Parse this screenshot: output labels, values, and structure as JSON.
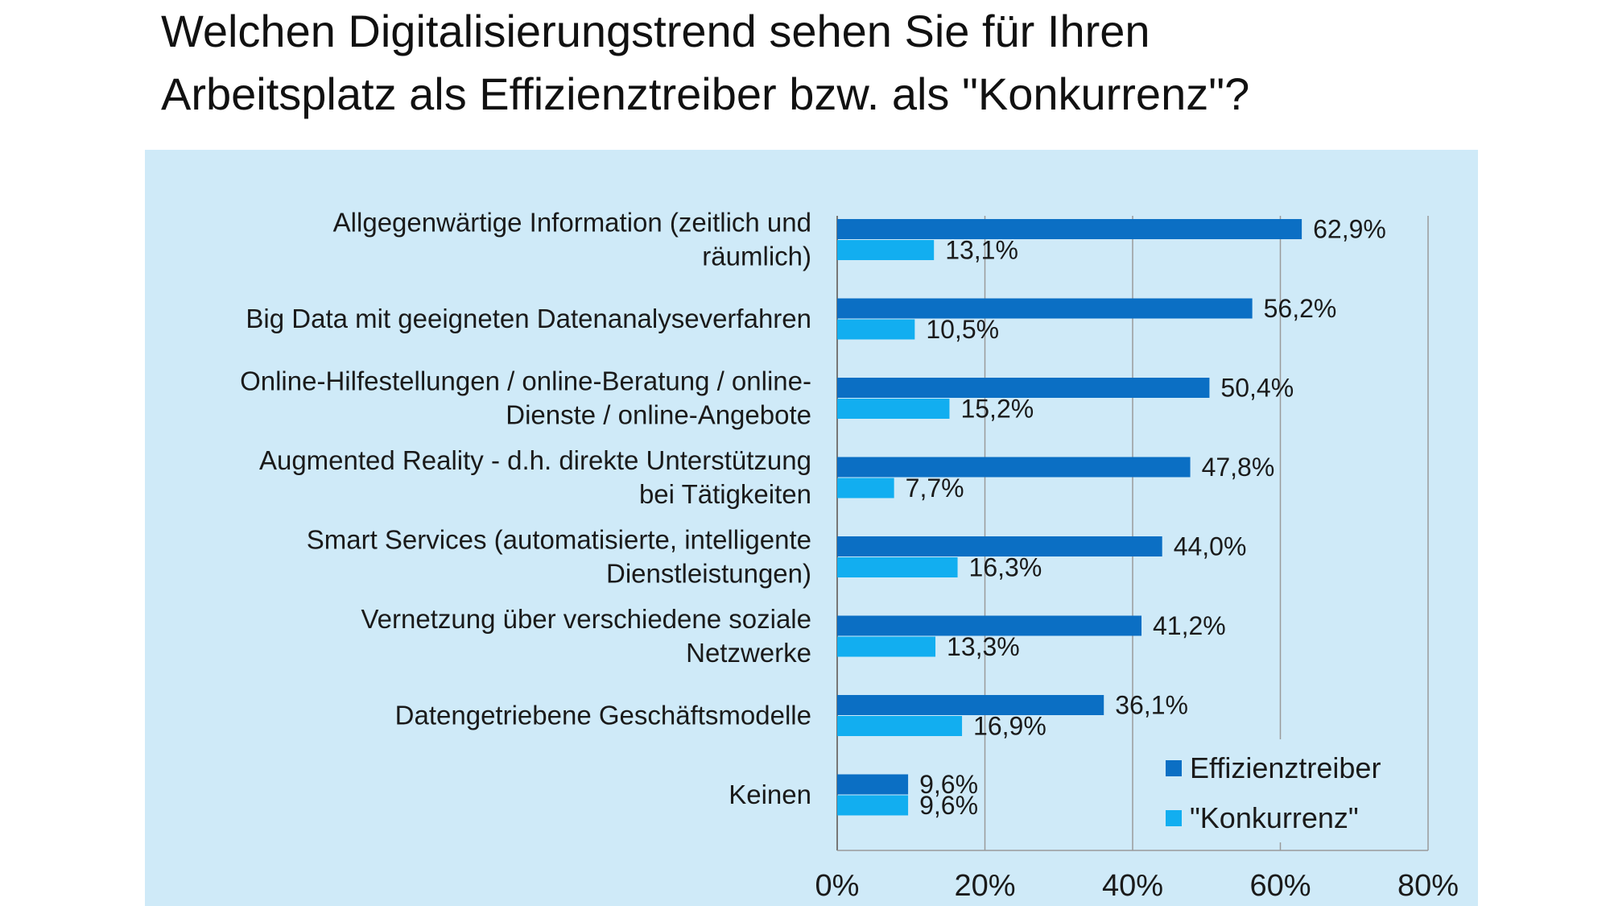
{
  "chart_data": {
    "type": "bar",
    "orientation": "horizontal",
    "title_lines": [
      "Welchen Digitalisierungstrend sehen Sie für Ihren",
      "Arbeitsplatz als Effizienztreiber bzw. als \"Konkurrenz\"?"
    ],
    "categories": [
      [
        "Allgegenwärtige Information (zeitlich und",
        "räumlich)"
      ],
      [
        "Big Data mit geeigneten Datenanalyseverfahren"
      ],
      [
        "Online-Hilfestellungen / online-Beratung / online-",
        "Dienste / online-Angebote"
      ],
      [
        "Augmented Reality - d.h. direkte Unterstützung",
        "bei Tätigkeiten"
      ],
      [
        "Smart Services (automatisierte, intelligente",
        "Dienstleistungen)"
      ],
      [
        "Vernetzung über verschiedene soziale",
        "Netzwerke"
      ],
      [
        "Datengetriebene Geschäftsmodelle"
      ],
      [
        "Keinen"
      ]
    ],
    "series": [
      {
        "name": "Effizienztreiber",
        "color": "#0b6fc4",
        "values": [
          62.9,
          56.2,
          50.4,
          47.8,
          44.0,
          41.2,
          36.1,
          9.6
        ],
        "labels": [
          "62,9%",
          "56,2%",
          "50,4%",
          "47,8%",
          "44,0%",
          "41,2%",
          "36,1%",
          "9,6%"
        ]
      },
      {
        "name": "\"Konkurrenz\"",
        "color": "#12aef0",
        "values": [
          13.1,
          10.5,
          15.2,
          7.7,
          16.3,
          13.3,
          16.9,
          9.6
        ],
        "labels": [
          "13,1%",
          "10,5%",
          "15,2%",
          "7,7%",
          "16,3%",
          "13,3%",
          "16,9%",
          "9,6%"
        ]
      }
    ],
    "xlim": [
      0,
      80
    ],
    "xticks": [
      0,
      20,
      40,
      60,
      80
    ],
    "xtick_labels": [
      "0%",
      "20%",
      "40%",
      "60%",
      "80%"
    ],
    "grid": "vertical",
    "legend_position": "bottom-right",
    "panel_color": "#cfeaf8"
  }
}
